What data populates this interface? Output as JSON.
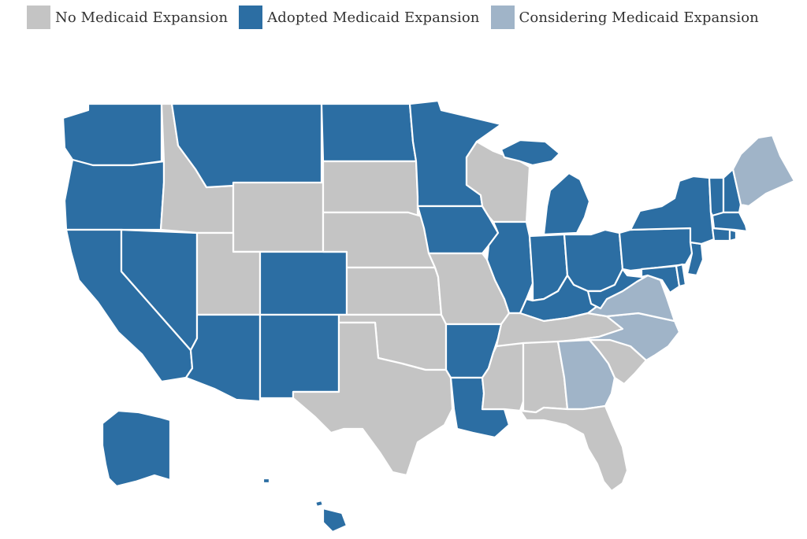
{
  "colors": {
    "none": "#c4c4c4",
    "adopted": "#2c6ea3",
    "considering": "#a0b4c8"
  },
  "legend": [
    {
      "key": "none",
      "label": "No Medicaid Expansion"
    },
    {
      "key": "adopted",
      "label": "Adopted Medicaid Expansion"
    },
    {
      "key": "considering",
      "label": "Considering Medicaid Expansion"
    }
  ],
  "states": {
    "WA": "adopted",
    "OR": "adopted",
    "CA": "adopted",
    "NV": "adopted",
    "ID": "none",
    "MT": "adopted",
    "WY": "none",
    "UT": "none",
    "AZ": "adopted",
    "CO": "adopted",
    "NM": "adopted",
    "ND": "adopted",
    "SD": "none",
    "NE": "none",
    "KS": "none",
    "OK": "none",
    "TX": "none",
    "MN": "adopted",
    "IA": "adopted",
    "MO": "none",
    "AR": "adopted",
    "LA": "adopted",
    "WI": "none",
    "IL": "adopted",
    "MI": "adopted",
    "IN": "adopted",
    "OH": "adopted",
    "KY": "adopted",
    "TN": "none",
    "MS": "none",
    "AL": "none",
    "GA": "considering",
    "FL": "none",
    "SC": "none",
    "NC": "considering",
    "VA": "considering",
    "WV": "adopted",
    "MD": "adopted",
    "DE": "adopted",
    "PA": "adopted",
    "NJ": "adopted",
    "NY": "adopted",
    "CT": "adopted",
    "RI": "adopted",
    "MA": "adopted",
    "VT": "adopted",
    "NH": "adopted",
    "ME": "considering",
    "AK": "adopted",
    "HI": "adopted"
  }
}
